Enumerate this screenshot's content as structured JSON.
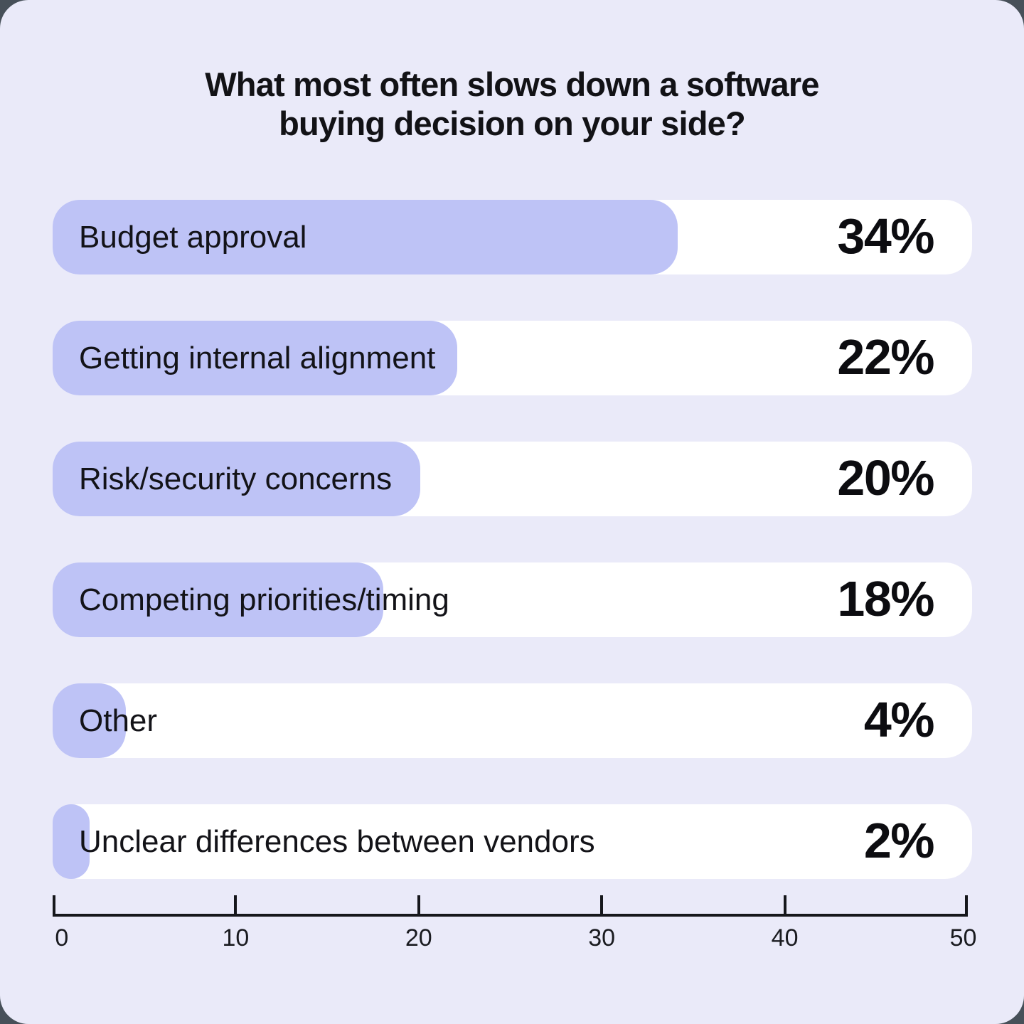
{
  "colors": {
    "backdrop": "#475059",
    "card_background": "#EAEAF9",
    "bar_fill": "#BEC3F6",
    "bar_track": "#FFFFFF",
    "text": "#121216"
  },
  "title": {
    "line1": "What most often slows down a software",
    "line2": "buying decision on your side?"
  },
  "chart_data": {
    "type": "bar",
    "orientation": "horizontal",
    "title": "What most often slows down a software buying decision on your side?",
    "categories": [
      "Budget approval",
      "Getting internal alignment",
      "Risk/security concerns",
      "Competing priorities/timing",
      "Other",
      "Unclear differences between vendors"
    ],
    "values": [
      34,
      22,
      20,
      18,
      4,
      2
    ],
    "value_labels": [
      "34%",
      "22%",
      "20%",
      "18%",
      "4%",
      "2%"
    ],
    "unit": "%",
    "xlabel": "",
    "ylabel": "",
    "xlim": [
      0,
      50
    ],
    "x_ticks": [
      "0",
      "10",
      "20",
      "30",
      "40",
      "50"
    ],
    "grid": false,
    "legend": false,
    "bar_color": "#BEC3F6",
    "track_color": "#FFFFFF"
  }
}
